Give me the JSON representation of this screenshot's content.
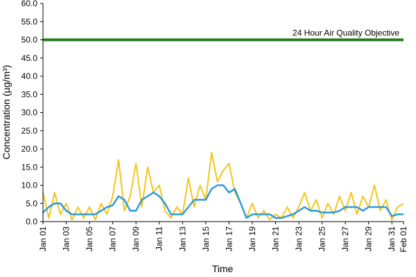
{
  "chart_data": {
    "type": "line",
    "xlabel": "Time",
    "ylabel": "Concentration (µg/m³)",
    "x": [
      0,
      0.5,
      1,
      1.5,
      2,
      2.5,
      3,
      3.5,
      4,
      4.5,
      5,
      5.5,
      6,
      6.5,
      7,
      7.5,
      8,
      8.5,
      9,
      9.5,
      10,
      10.5,
      11,
      11.5,
      12,
      12.5,
      13,
      13.5,
      14,
      14.5,
      15,
      15.5,
      16,
      16.5,
      17,
      17.5,
      18,
      18.5,
      19,
      19.5,
      20,
      20.5,
      21,
      21.5,
      22,
      22.5,
      23,
      23.5,
      24,
      24.5,
      25,
      25.5,
      26,
      26.5,
      27,
      27.5,
      28,
      28.5,
      29,
      29.5,
      30,
      30.5,
      31
    ],
    "series": [
      {
        "color": "#f5c518",
        "values": [
          8,
          1,
          8,
          2,
          5,
          0.5,
          4,
          1,
          4,
          0.5,
          5,
          2,
          7,
          17,
          3,
          7,
          16,
          4,
          15,
          8,
          10,
          3,
          1,
          4,
          2,
          12,
          4,
          10,
          6,
          19,
          11,
          14,
          16,
          8,
          5,
          1,
          5,
          1,
          3,
          0.5,
          2,
          1,
          4,
          1,
          4,
          8,
          3,
          6,
          1,
          5,
          2,
          7,
          3,
          8,
          2,
          7,
          4,
          10,
          3,
          6,
          0.5,
          4,
          5
        ]
      },
      {
        "color": "#2b9be0",
        "values": [
          2.5,
          4,
          5,
          5,
          3,
          2,
          2,
          2,
          2,
          2,
          3,
          4,
          4.5,
          7,
          6,
          3,
          3,
          6,
          7,
          8,
          7,
          5,
          2,
          2,
          2,
          4,
          6,
          6,
          6,
          9,
          10,
          10,
          8,
          9,
          5,
          1,
          2,
          2,
          2,
          2,
          1,
          1,
          1.5,
          2,
          3,
          4,
          3,
          3,
          2.5,
          2.5,
          2.5,
          3,
          4,
          4,
          4,
          3,
          4,
          4,
          4,
          4,
          1.5,
          2,
          2
        ]
      }
    ],
    "reference_lines": [
      {
        "value": 50,
        "label": "24 Hour Air Quality Objective",
        "color": "#1e7d1e"
      }
    ],
    "xlim": [
      0,
      31
    ],
    "xticks": [
      {
        "value": 0,
        "label": "Jan 01"
      },
      {
        "value": 2,
        "label": "Jan 03"
      },
      {
        "value": 4,
        "label": "Jan 05"
      },
      {
        "value": 6,
        "label": "Jan 07"
      },
      {
        "value": 8,
        "label": "Jan 09"
      },
      {
        "value": 10,
        "label": "Jan 11"
      },
      {
        "value": 12,
        "label": "Jan 13"
      },
      {
        "value": 14,
        "label": "Jan 15"
      },
      {
        "value": 16,
        "label": "Jan 17"
      },
      {
        "value": 18,
        "label": "Jan 19"
      },
      {
        "value": 20,
        "label": "Jan 21"
      },
      {
        "value": 22,
        "label": "Jan 23"
      },
      {
        "value": 24,
        "label": "Jan 25"
      },
      {
        "value": 26,
        "label": "Jan 27"
      },
      {
        "value": 28,
        "label": "Jan 29"
      },
      {
        "value": 30,
        "label": "Jan 31"
      },
      {
        "value": 31,
        "label": "Feb 01"
      }
    ],
    "ylim": [
      0,
      60
    ],
    "yticks": [
      {
        "value": 0,
        "label": "0.0"
      },
      {
        "value": 5,
        "label": "5.0"
      },
      {
        "value": 10,
        "label": "10.0"
      },
      {
        "value": 15,
        "label": "15.0"
      },
      {
        "value": 20,
        "label": "20.0"
      },
      {
        "value": 25,
        "label": "25.0"
      },
      {
        "value": 30,
        "label": "30.0"
      },
      {
        "value": 35,
        "label": "35.0"
      },
      {
        "value": 40,
        "label": "40.0"
      },
      {
        "value": 45,
        "label": "45.0"
      },
      {
        "value": 50,
        "label": "50.0"
      },
      {
        "value": 55,
        "label": "55.0"
      },
      {
        "value": 60,
        "label": "60.0"
      }
    ],
    "grid": false
  }
}
